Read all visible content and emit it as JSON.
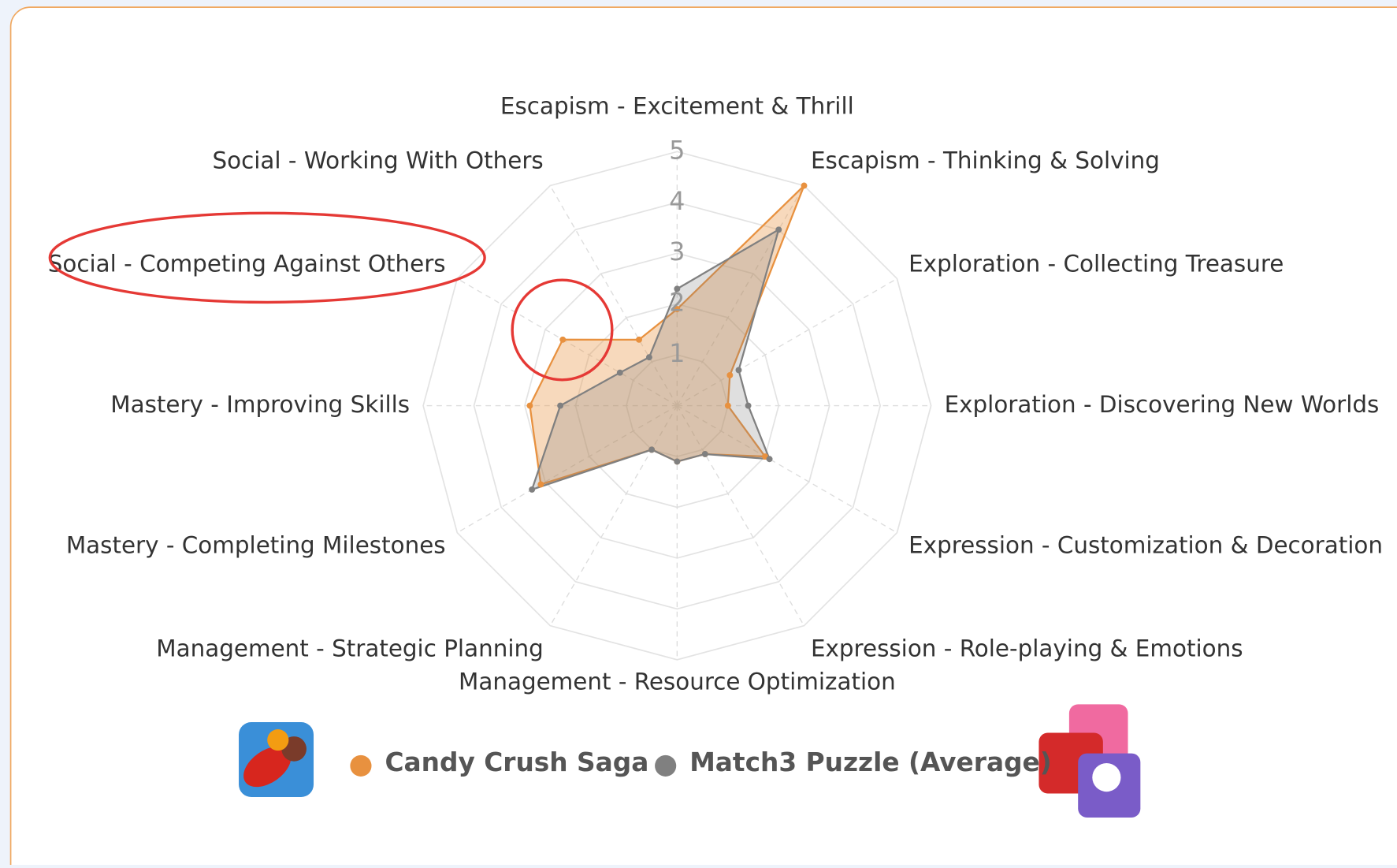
{
  "chart_data": {
    "type": "radar",
    "categories": [
      "Escapism - Excitement & Thrill",
      "Escapism - Thinking & Solving",
      "Exploration - Collecting Treasure",
      "Exploration - Discovering New Worlds",
      "Expression - Customization & Decoration",
      "Expression - Role-playing & Emotions",
      "Management - Resource Optimization",
      "Management - Strategic Planning",
      "Mastery - Completing Milestones",
      "Mastery - Improving Skills",
      "Social - Competing Against Others",
      "Social - Working With Others"
    ],
    "series": [
      {
        "name": "Candy Crush Saga",
        "color": "#e8913f",
        "values": [
          1.9,
          5.0,
          1.2,
          1.0,
          2.0,
          1.1,
          1.1,
          1.0,
          3.1,
          2.9,
          2.6,
          1.5
        ]
      },
      {
        "name": "Match3 Puzzle (Average)",
        "color": "#808080",
        "values": [
          2.3,
          4.0,
          1.4,
          1.4,
          2.1,
          1.1,
          1.1,
          1.0,
          3.3,
          2.3,
          1.3,
          1.1
        ]
      }
    ],
    "ylim": [
      0,
      5
    ],
    "yticks": [
      1,
      2,
      3,
      4,
      5
    ],
    "grid": true
  }
}
